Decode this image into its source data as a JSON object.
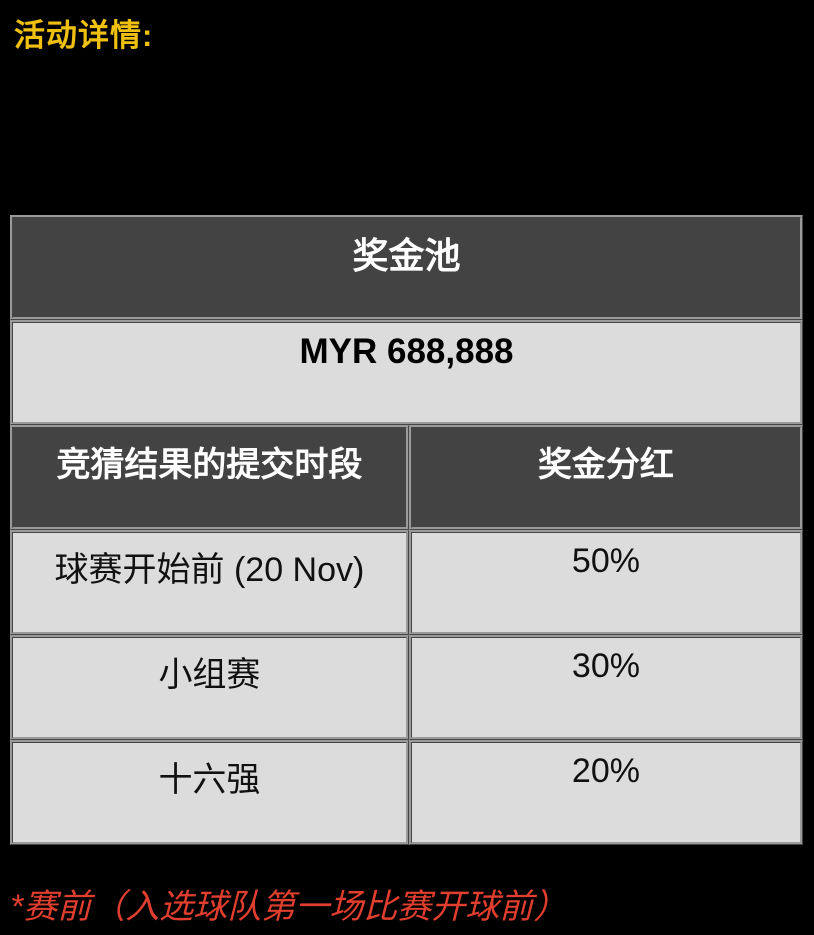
{
  "heading": {
    "text": "活动详情:",
    "color": "#f0c011"
  },
  "table": {
    "title": "奖金池",
    "prize_pool": "MYR 688,888",
    "columns": {
      "period": "竞猜结果的提交时段",
      "share": "奖金分红"
    },
    "rows": [
      {
        "period": "球赛开始前 (20 Nov)",
        "share": "50%"
      },
      {
        "period": "小组赛",
        "share": "30%"
      },
      {
        "period": "十六强",
        "share": "20%"
      }
    ],
    "colors": {
      "header_bg": "#434343",
      "header_text": "#ffffff",
      "cell_bg": "#dcdcdc",
      "cell_text": "#111111"
    }
  },
  "footnote": {
    "text": "*赛前（入选球队第一场比赛开球前）",
    "color": "#e03e2e"
  }
}
